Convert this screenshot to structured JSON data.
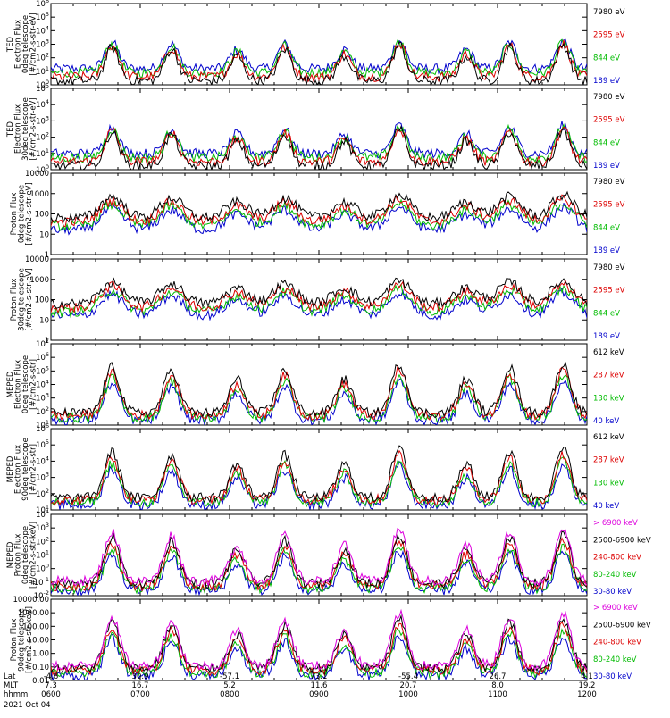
{
  "panels": [
    {
      "ylabel": [
        "TED",
        "Electron Flux",
        "0deg telescope",
        "[#/cm2-s-str-eV]"
      ],
      "scale": "log",
      "yticks": [
        "10^6",
        "10^5",
        "10^4",
        "10^3",
        "10^2",
        "10^1",
        "10^0"
      ],
      "ylog": [
        0,
        6
      ],
      "legend": [
        {
          "label": "7980 eV",
          "color": "#000000"
        },
        {
          "label": "2595 eV",
          "color": "#dd0000"
        },
        {
          "label": "844 eV",
          "color": "#00bb00"
        },
        {
          "label": "189 eV",
          "color": "#0000cc"
        }
      ]
    },
    {
      "ylabel": [
        "TED",
        "Electron Flux",
        "30deg telescope",
        "[#/cm2-s-str-eV]"
      ],
      "scale": "log",
      "yticks": [
        "10^5",
        "10^4",
        "10^3",
        "10^2",
        "10^1",
        "10^0"
      ],
      "ylog": [
        0,
        5
      ],
      "legend": [
        {
          "label": "7980 eV",
          "color": "#000000"
        },
        {
          "label": "2595 eV",
          "color": "#dd0000"
        },
        {
          "label": "844 eV",
          "color": "#00bb00"
        },
        {
          "label": "189 eV",
          "color": "#0000cc"
        }
      ]
    },
    {
      "ylabel": [
        "Proton Flux",
        "0deg telescope",
        "[#/cm2-s-str-eV]"
      ],
      "scale": "plain",
      "yticks": [
        "10000",
        "1000",
        "100",
        "10",
        "1"
      ],
      "ylog": [
        0,
        4
      ],
      "legend": [
        {
          "label": "7980 eV",
          "color": "#000000"
        },
        {
          "label": "2595 eV",
          "color": "#dd0000"
        },
        {
          "label": "844 eV",
          "color": "#00bb00"
        },
        {
          "label": "189 eV",
          "color": "#0000cc"
        }
      ]
    },
    {
      "ylabel": [
        "Proton Flux",
        "30deg telescope",
        "[#/cm2-s-str-eV]"
      ],
      "scale": "plain",
      "yticks": [
        "10000",
        "1000",
        "100",
        "10",
        "1"
      ],
      "ylog": [
        0,
        4
      ],
      "legend": [
        {
          "label": "7980 eV",
          "color": "#000000"
        },
        {
          "label": "2595 eV",
          "color": "#dd0000"
        },
        {
          "label": "844 eV",
          "color": "#00bb00"
        },
        {
          "label": "189 eV",
          "color": "#0000cc"
        }
      ]
    },
    {
      "ylabel": [
        "MEPED",
        "Electron Flux",
        "0deg telescope",
        "[#/cm2-s-str]"
      ],
      "scale": "log",
      "yticks": [
        "10^7",
        "10^6",
        "10^5",
        "10^4",
        "10^3",
        "10^2",
        "10^1"
      ],
      "ylog": [
        1,
        7
      ],
      "legend": [
        {
          "label": "612 keV",
          "color": "#000000"
        },
        {
          "label": "287 keV",
          "color": "#dd0000"
        },
        {
          "label": "130 keV",
          "color": "#00bb00"
        },
        {
          "label": "40 keV",
          "color": "#0000cc"
        }
      ]
    },
    {
      "ylabel": [
        "MEPED",
        "Electron Flux",
        "90deg telescope",
        "[#/cm2-s-str]"
      ],
      "scale": "log",
      "yticks": [
        "10^6",
        "10^5",
        "10^4",
        "10^3",
        "10^2",
        "10^1"
      ],
      "ylog": [
        1,
        6
      ],
      "legend": [
        {
          "label": "612 keV",
          "color": "#000000"
        },
        {
          "label": "287 keV",
          "color": "#dd0000"
        },
        {
          "label": "130 keV",
          "color": "#00bb00"
        },
        {
          "label": "40 keV",
          "color": "#0000cc"
        }
      ]
    },
    {
      "ylabel": [
        "MEPED",
        "Proton Flux",
        "0deg telescope",
        "[#/cm2-s-str-keV]"
      ],
      "scale": "log",
      "yticks": [
        "10^4",
        "10^3",
        "10^2",
        "10^1",
        "10^0",
        "10^-1",
        "10^-2"
      ],
      "ylog": [
        -2,
        4
      ],
      "legend": [
        {
          "label": "> 6900 keV",
          "color": "#dd00dd"
        },
        {
          "label": "2500-6900 keV",
          "color": "#000000"
        },
        {
          "label": "240-800 keV",
          "color": "#dd0000"
        },
        {
          "label": "80-240 keV",
          "color": "#00bb00"
        },
        {
          "label": "30-80 keV",
          "color": "#0000cc"
        }
      ]
    },
    {
      "ylabel": [
        "Proton Flux",
        "90deg telescope",
        "[#/cm2-s-str-keV]"
      ],
      "scale": "plain",
      "yticks": [
        "10000.00",
        "1000.00",
        "100.00",
        "10.00",
        "1.00",
        "0.10",
        "0.01"
      ],
      "ylog": [
        -2,
        4
      ],
      "legend": [
        {
          "label": "> 6900 keV",
          "color": "#dd00dd"
        },
        {
          "label": "2500-6900 keV",
          "color": "#000000"
        },
        {
          "label": "240-800 keV",
          "color": "#dd0000"
        },
        {
          "label": "80-240 keV",
          "color": "#00bb00"
        },
        {
          "label": "30-80 keV",
          "color": "#0000cc"
        }
      ]
    }
  ],
  "xaxis": {
    "row_labels": [
      "Lat",
      "MLT",
      "hhmm"
    ],
    "ticks": [
      {
        "lat": "-4.6",
        "mlt": "7.3",
        "hhmm": "0600"
      },
      {
        "lat": "30.9",
        "mlt": "16.7",
        "hhmm": "0700"
      },
      {
        "lat": "-57.1",
        "mlt": "5.2",
        "hhmm": "0800"
      },
      {
        "lat": "73.1",
        "mlt": "11.6",
        "hhmm": "0900"
      },
      {
        "lat": "-55.4",
        "mlt": "20.7",
        "hhmm": "1000"
      },
      {
        "lat": "26.7",
        "mlt": "8.0",
        "hhmm": "1100"
      },
      {
        "lat": "4.1",
        "mlt": "19.2",
        "hhmm": "1200"
      }
    ],
    "date": "2021 Oct 04"
  },
  "chart_data": {
    "type": "line",
    "x": [
      "0600",
      "0700",
      "0800",
      "0900",
      "1000",
      "1100",
      "1200"
    ],
    "panels_count": 8,
    "yscale": "log",
    "passes": [
      {
        "center_hhmm": "0641",
        "peak_rel": 0.75
      },
      {
        "center_hhmm": "0721",
        "peak_rel": 0.7
      },
      {
        "center_hhmm": "0805",
        "peak_rel": 0.55
      },
      {
        "center_hhmm": "0837",
        "peak_rel": 0.7
      },
      {
        "center_hhmm": "0917",
        "peak_rel": 0.55
      },
      {
        "center_hhmm": "0954",
        "peak_rel": 0.8
      },
      {
        "center_hhmm": "1039",
        "peak_rel": 0.55
      },
      {
        "center_hhmm": "1108",
        "peak_rel": 0.75
      },
      {
        "center_hhmm": "1144",
        "peak_rel": 0.8
      }
    ]
  }
}
